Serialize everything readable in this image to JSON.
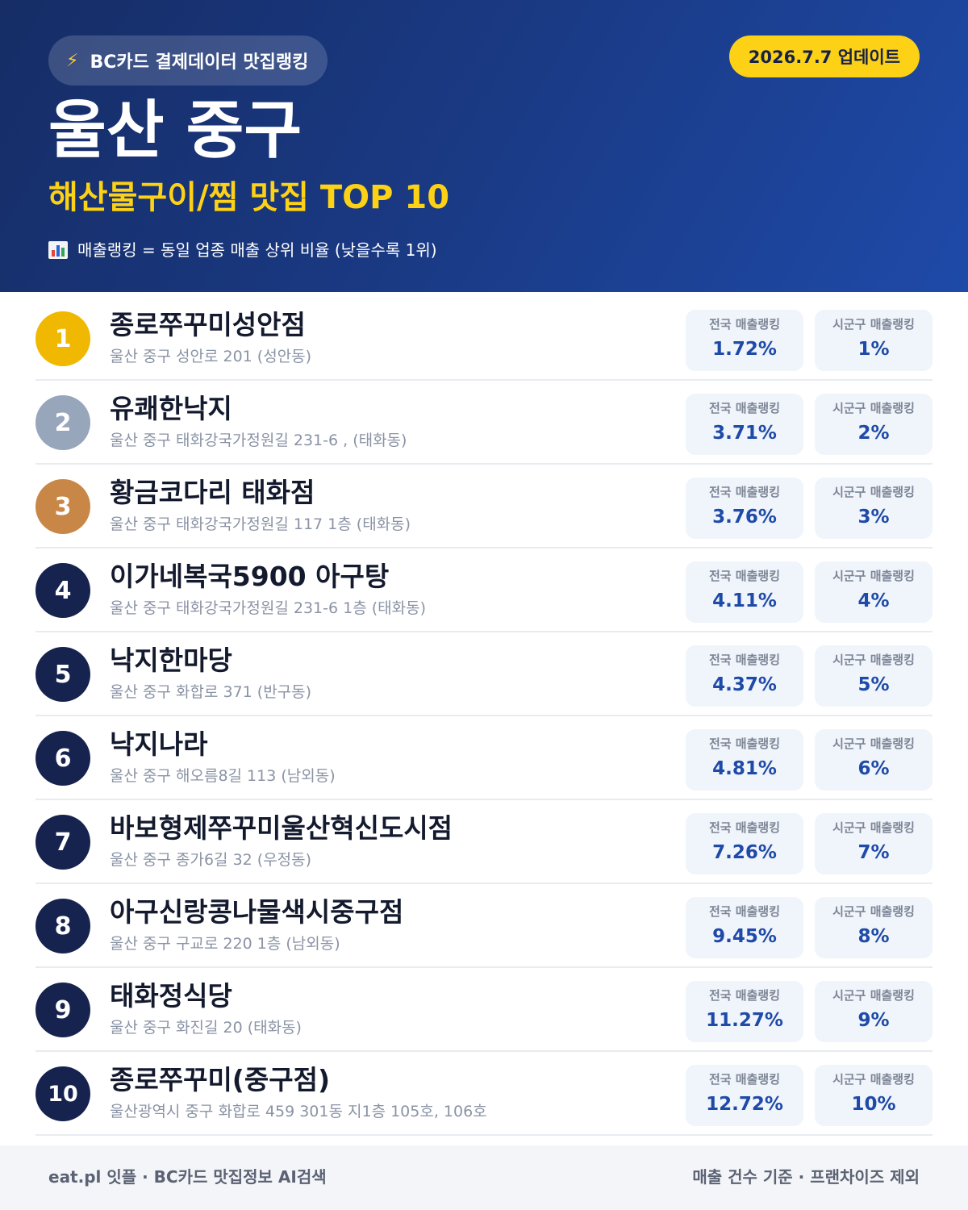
{
  "header": {
    "source_label": "BC카드 결제데이터 맛집랭킹",
    "update_label": "2026.7.7 업데이트",
    "region": "울산 중구",
    "category": "해산물구이/찜 맛집 TOP 10",
    "legend": "매출랭킹 = 동일 업종 매출 상위 비율 (낮을수록 1위)",
    "bolt_icon": "lightning-bolt-icon",
    "legend_icon": "bar-chart-icon"
  },
  "stat_labels": {
    "national": "전국 매출랭킹",
    "local": "시군구 매출랭킹"
  },
  "restaurants": [
    {
      "rank": "1",
      "name": "종로쭈꾸미성안점",
      "address": "울산 중구 성안로 201 (성안동)",
      "national": "1.72%",
      "local": "1%"
    },
    {
      "rank": "2",
      "name": "유쾌한낙지",
      "address": "울산 중구 태화강국가정원길 231-6 , (태화동)",
      "national": "3.71%",
      "local": "2%"
    },
    {
      "rank": "3",
      "name": "황금코다리 태화점",
      "address": "울산 중구 태화강국가정원길 117 1층 (태화동)",
      "national": "3.76%",
      "local": "3%"
    },
    {
      "rank": "4",
      "name": "이가네복국5900 아구탕",
      "address": "울산 중구 태화강국가정원길 231-6 1층 (태화동)",
      "national": "4.11%",
      "local": "4%"
    },
    {
      "rank": "5",
      "name": "낙지한마당",
      "address": "울산 중구 화합로 371 (반구동)",
      "national": "4.37%",
      "local": "5%"
    },
    {
      "rank": "6",
      "name": "낙지나라",
      "address": "울산 중구 해오름8길 113 (남외동)",
      "national": "4.81%",
      "local": "6%"
    },
    {
      "rank": "7",
      "name": "바보형제쭈꾸미울산혁신도시점",
      "address": "울산 중구 종가6길 32 (우정동)",
      "national": "7.26%",
      "local": "7%"
    },
    {
      "rank": "8",
      "name": "아구신랑콩나물색시중구점",
      "address": "울산 중구 구교로 220 1층 (남외동)",
      "national": "9.45%",
      "local": "8%"
    },
    {
      "rank": "9",
      "name": "태화정식당",
      "address": "울산 중구 화진길 20 (태화동)",
      "national": "11.27%",
      "local": "9%"
    },
    {
      "rank": "10",
      "name": "종로쭈꾸미(중구점)",
      "address": "울산광역시 중구 화합로 459 301동 지1층 105호, 106호",
      "national": "12.72%",
      "local": "10%"
    }
  ],
  "footer": {
    "left": "eat.pl 잇플 · BC카드 맛집정보 AI검색",
    "right": "매출 건수 기준 · 프랜차이즈 제외"
  },
  "colors": {
    "header_start": "#162d66",
    "header_end": "#1e4aa8",
    "accent_yellow": "#fcd116",
    "rank_gold": "#f0b800",
    "rank_silver": "#98a6bb",
    "rank_bronze": "#c98747",
    "rank_default": "#17234f",
    "stat_value": "#1e4aa8"
  }
}
